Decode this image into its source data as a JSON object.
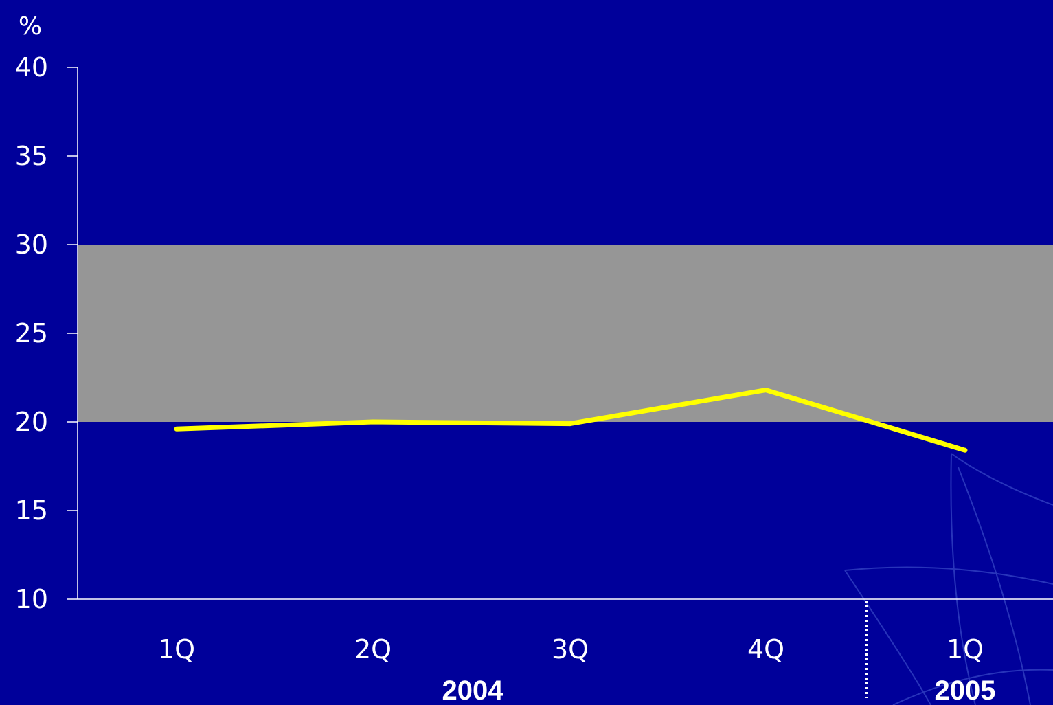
{
  "chart_data": {
    "type": "line",
    "unit_label": "%",
    "ylim": [
      10,
      40
    ],
    "y_ticks": [
      40,
      35,
      30,
      25,
      20,
      15,
      10
    ],
    "categories": [
      "1Q",
      "2Q",
      "3Q",
      "4Q",
      "1Q"
    ],
    "year_groups": [
      {
        "label": "2004",
        "categories": [
          "1Q",
          "2Q",
          "3Q",
          "4Q"
        ]
      },
      {
        "label": "2005",
        "categories": [
          "1Q"
        ]
      }
    ],
    "series": [
      {
        "values": [
          19.6,
          20.0,
          19.9,
          21.8,
          18.4
        ],
        "color": "#ffff00"
      }
    ],
    "target_band": {
      "from": 20,
      "to": 30,
      "color": "#969696"
    },
    "grid": false,
    "colors": {
      "background": "#00009a",
      "axis": "#ffffff",
      "text": "#ffffff"
    }
  }
}
